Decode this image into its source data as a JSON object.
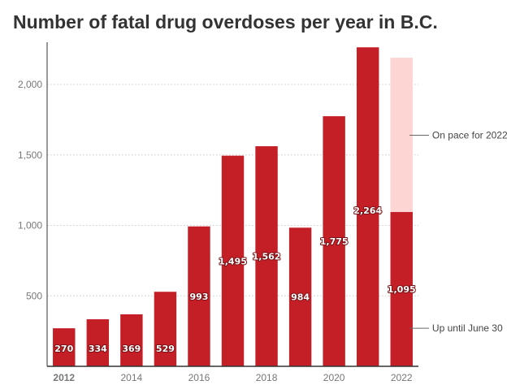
{
  "chart_data": {
    "type": "bar",
    "title": "Number of fatal drug overdoses per year in B.C.",
    "xlabel": "",
    "ylabel": "",
    "categories": [
      "2012",
      "2013",
      "2014",
      "2015",
      "2016",
      "2017",
      "2018",
      "2019",
      "2020",
      "2021",
      "2022"
    ],
    "x_tick_labels": [
      "2012",
      "2014",
      "2016",
      "2018",
      "2020",
      "2022"
    ],
    "series": [
      {
        "values": [
          270,
          334,
          369,
          529,
          993,
          1495,
          1562,
          984,
          1775,
          2264,
          1095
        ],
        "labels": [
          "270",
          "334",
          "369",
          "529",
          "993",
          "1,495",
          "1,562",
          "984",
          "1,775",
          "2,264",
          "1,095"
        ]
      },
      {
        "values": [
          null,
          null,
          null,
          null,
          null,
          null,
          null,
          null,
          null,
          null,
          2190
        ]
      }
    ],
    "y_ticks": [
      500,
      1000,
      1500,
      2000
    ],
    "y_tick_labels": [
      "500",
      "1,000",
      "1,500",
      "2,000"
    ],
    "ylim": [
      0,
      2300
    ],
    "grid": "horizontal dotted",
    "annotations": [
      {
        "text": "On pace for 2022",
        "category": "2022",
        "value": 1640
      },
      {
        "text": "Up until June 30",
        "category": "2022",
        "value": 270
      }
    ],
    "colors": {
      "actual": "#c41f26",
      "projected": "#fdd5d3",
      "grid": "#cccccc",
      "axis": "#333333"
    }
  }
}
